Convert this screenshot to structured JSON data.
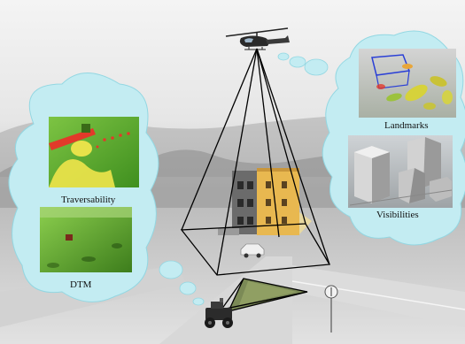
{
  "labels": {
    "traversability": "Traversability",
    "dtm": "DTM",
    "landmarks": "Landmarks",
    "visibilities": "Visibilities"
  },
  "colors": {
    "cloud": "#bfeaf0",
    "cloud_edge": "#7fcfdc",
    "terrain_green": "#5fae2f",
    "traversable_yellow": "#e8e24a",
    "obstacle_red": "#e23a2a",
    "line": "#000000"
  }
}
